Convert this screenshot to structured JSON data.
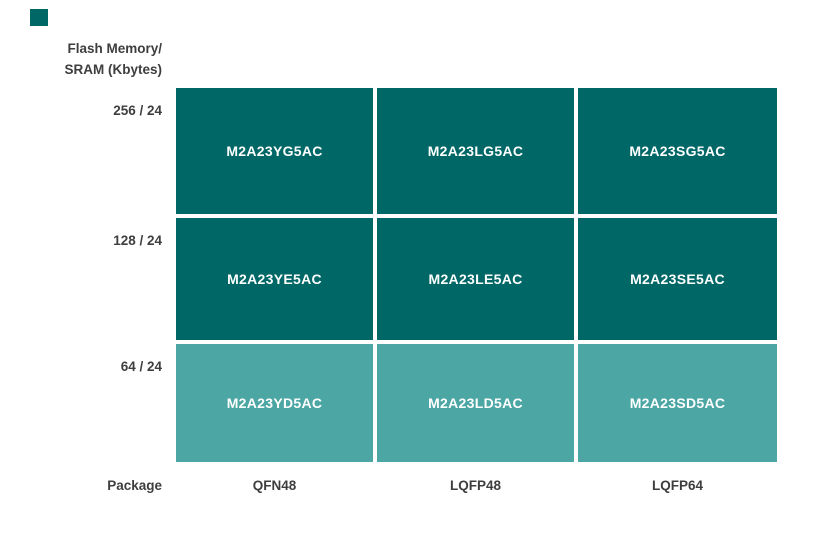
{
  "colors": {
    "cell_dark": "#006767",
    "cell_light": "#4BA6A4",
    "label_text": "#3E3E3E",
    "cell_text": "#FFFFFF",
    "background": "#FFFFFF",
    "swatch": "#006767"
  },
  "chart_data": {
    "type": "table",
    "row_axis_label": [
      "Flash Memory/",
      "SRAM (Kbytes)"
    ],
    "col_axis_label": "Package",
    "columns": [
      "QFN48",
      "LQFP48",
      "LQFP64"
    ],
    "rows": [
      {
        "label": "256 / 24",
        "cells": [
          "M2A23YG5AC",
          "M2A23LG5AC",
          "M2A23SG5AC"
        ],
        "color": "#006767"
      },
      {
        "label": "128 / 24",
        "cells": [
          "M2A23YE5AC",
          "M2A23LE5AC",
          "M2A23SE5AC"
        ],
        "color": "#006767"
      },
      {
        "label": "64 / 24",
        "cells": [
          "M2A23YD5AC",
          "M2A23LD5AC",
          "M2A23SD5AC"
        ],
        "color": "#4BA6A4"
      }
    ],
    "legend_position": "none",
    "grid": "off",
    "cell_text_color": "#FFFFFF",
    "label_text_color": "#3E3E3E"
  }
}
